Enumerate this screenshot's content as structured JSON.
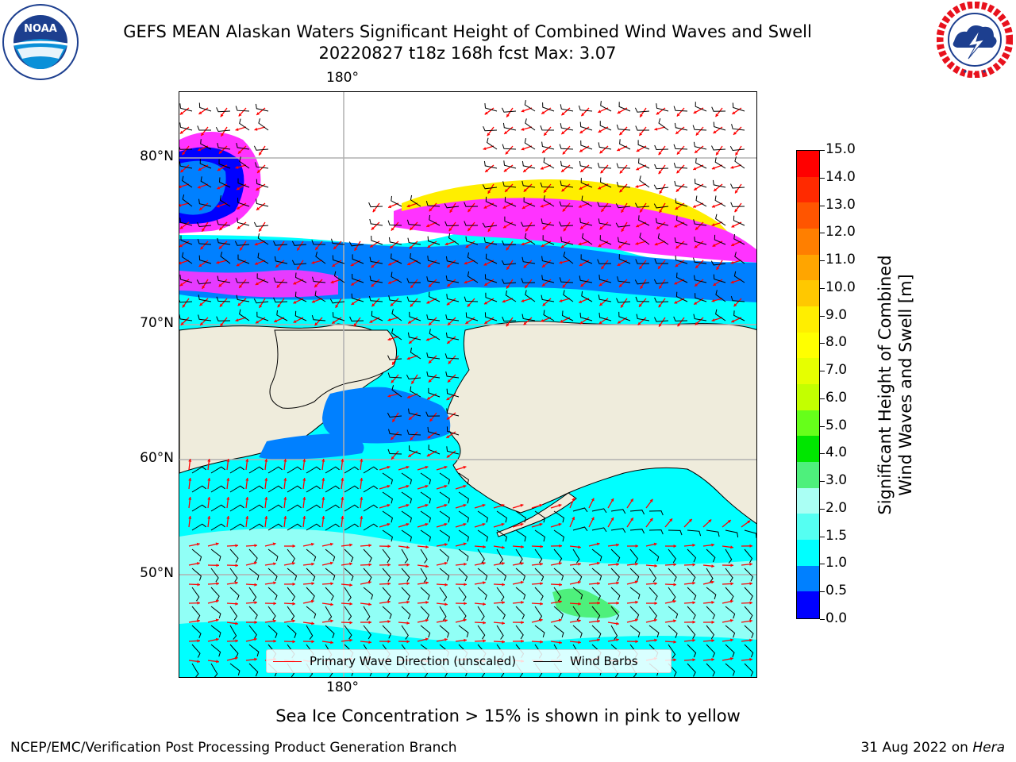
{
  "header": {
    "title_line1": "GEFS MEAN Alaskan Waters Significant Height of Combined Wind Waves and Swell",
    "title_line2": "20220827 t18z 168h fcst   Max: 3.07"
  },
  "logos": {
    "noaa_text": "NOAA",
    "noaa_ring_text": "NATIONAL OCEANIC AND ATMOSPHERIC ADMINISTRATION · U.S. DEPARTMENT OF COMMERCE",
    "nws_ring_text": "NATIONAL WEATHER SERVICE"
  },
  "map": {
    "lat_labels": [
      "80°N",
      "70°N",
      "60°N",
      "50°N"
    ],
    "lon_label_top": "180°",
    "lon_label_bottom": "180°",
    "legend": {
      "wave_label": "Primary Wave Direction (unscaled)",
      "wave_color": "#ff0000",
      "barb_label": "Wind Barbs",
      "barb_color": "#000000"
    }
  },
  "colorbar": {
    "label_line1": "Significant Height of Combined",
    "label_line2": "Wind Waves and Swell [m]",
    "ticks": [
      "15.0",
      "14.0",
      "13.0",
      "12.0",
      "11.0",
      "10.0",
      "9.0",
      "8.0",
      "7.0",
      "6.0",
      "5.0",
      "4.0",
      "3.0",
      "2.0",
      "1.5",
      "1.0",
      "0.5",
      "0.0"
    ],
    "colors_top_to_bottom": [
      "#ff0000",
      "#ff2a00",
      "#ff5500",
      "#ff7f00",
      "#ffa500",
      "#ffc800",
      "#ffee00",
      "#ffff00",
      "#e6ff00",
      "#c3ff00",
      "#66ff1a",
      "#00e600",
      "#4ef07c",
      "#aafff4",
      "#55fff2",
      "#00ffff",
      "#0080ff",
      "#0000ff"
    ]
  },
  "notes": {
    "ice_note": "Sea Ice Concentration > 15% is shown in pink to yellow"
  },
  "footer": {
    "left": "NCEP/EMC/Verification Post Processing Product Generation Branch",
    "right_date": "31 Aug 2022 on ",
    "right_host": "Hera"
  }
}
